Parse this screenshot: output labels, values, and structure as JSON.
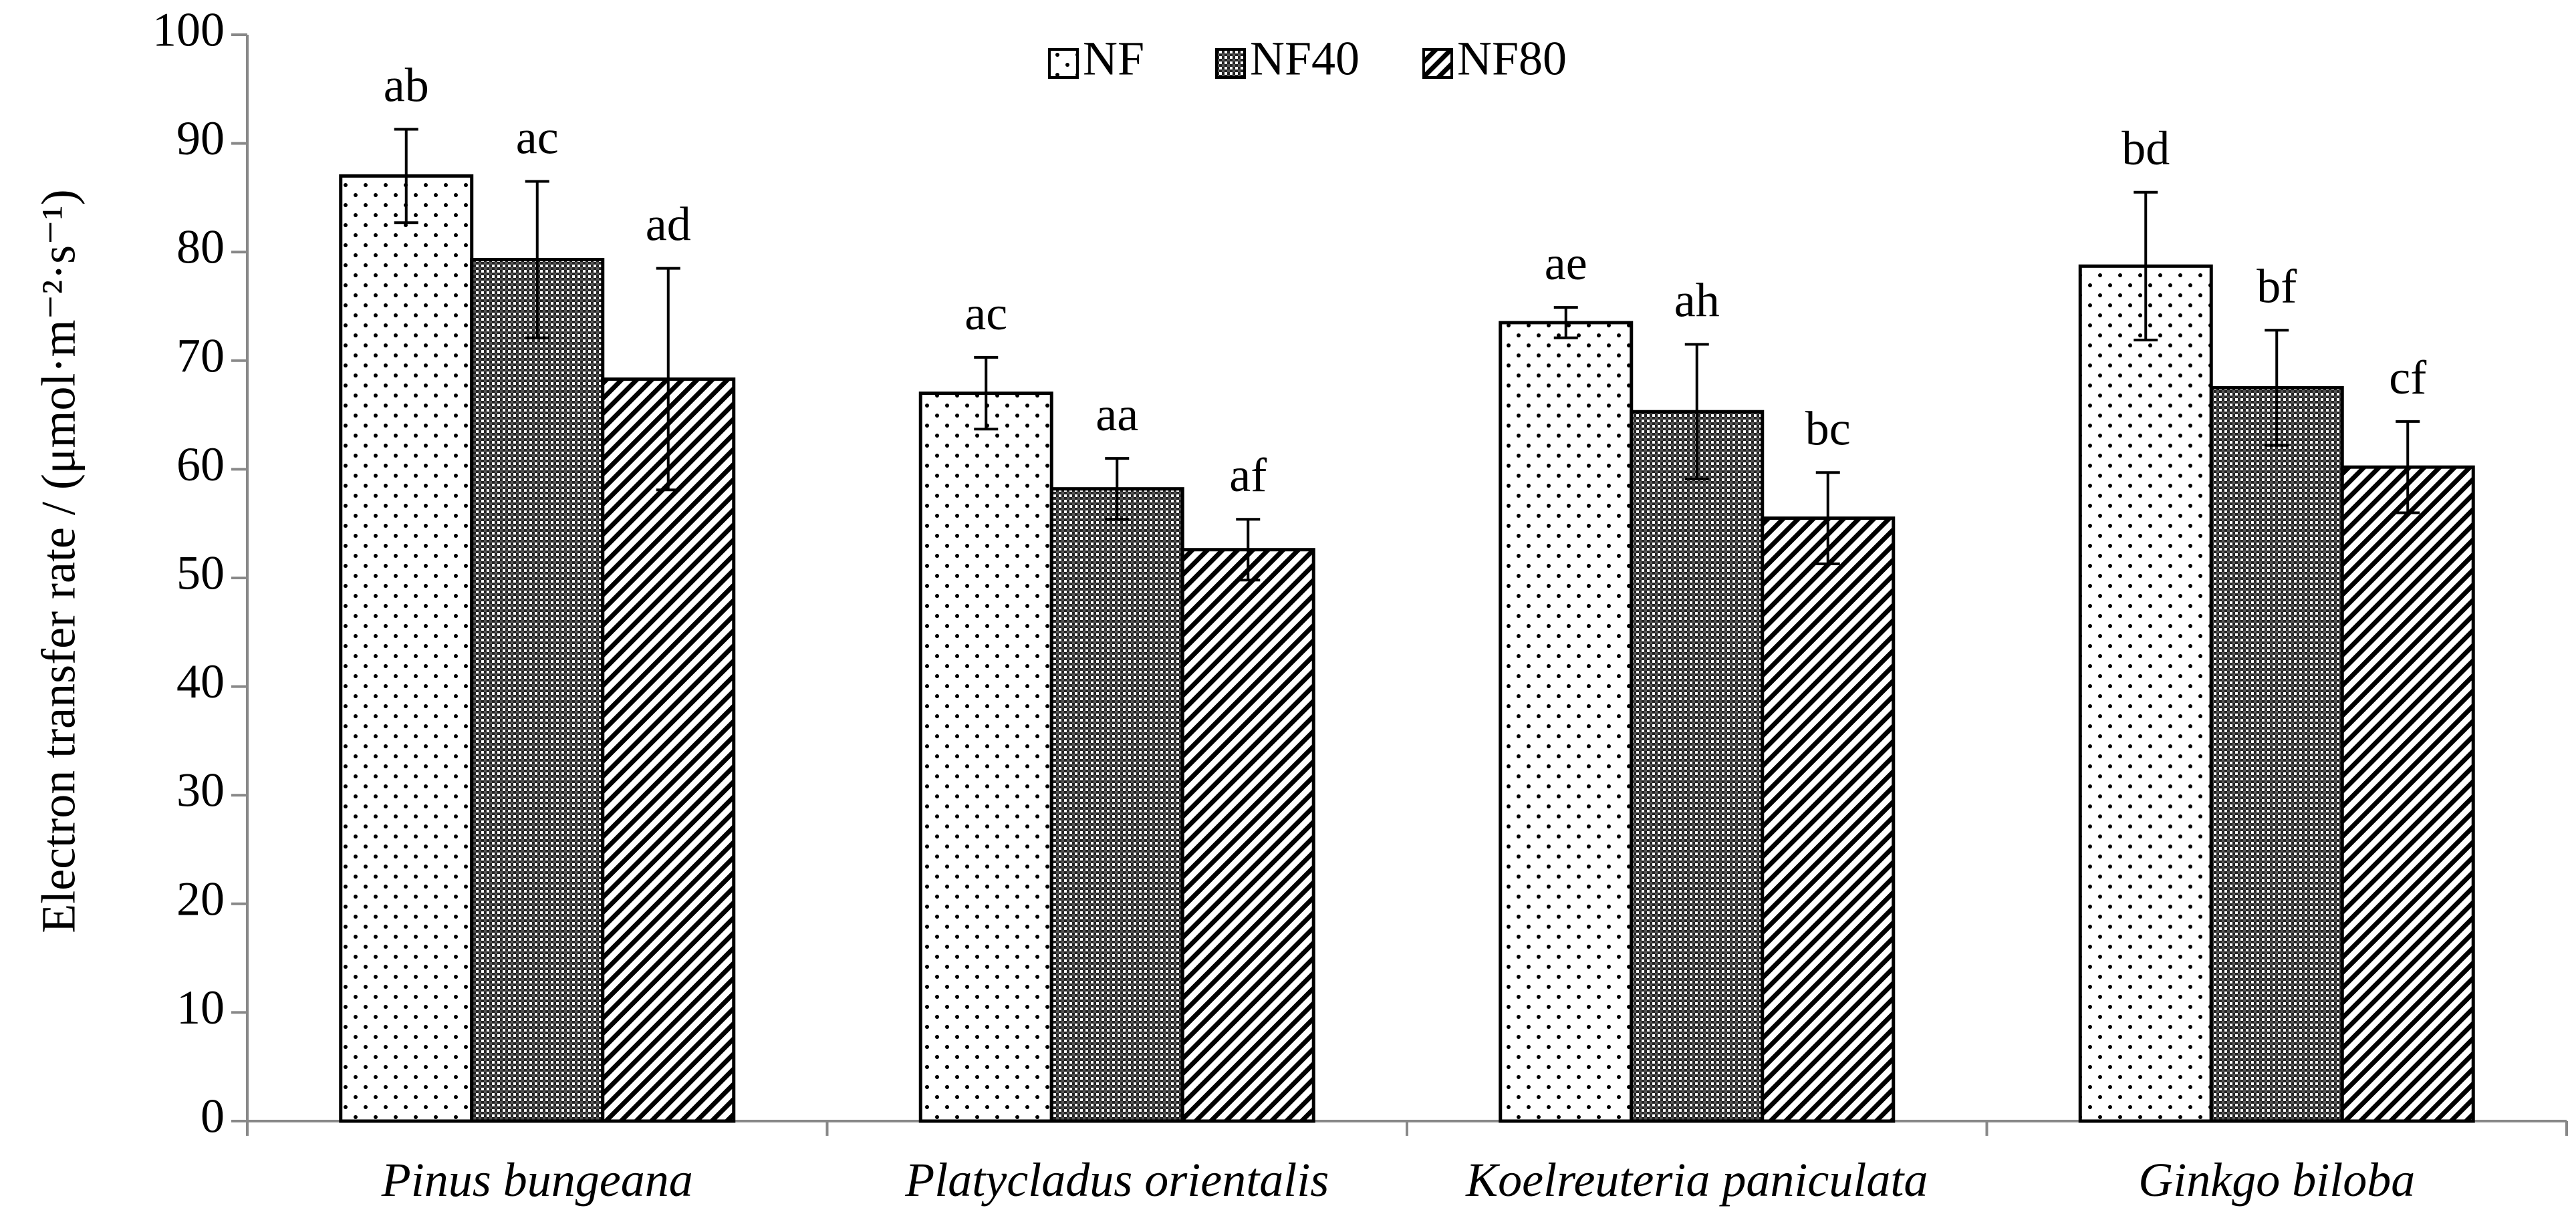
{
  "chart_data": {
    "type": "bar",
    "title": "",
    "xlabel": "",
    "ylabel": "Electron transfer rate / (μmol·m⁻²·s⁻¹)",
    "ylim": [
      0,
      100
    ],
    "yticks": [
      0,
      10,
      20,
      30,
      40,
      50,
      60,
      70,
      80,
      90,
      100
    ],
    "grid": false,
    "legend_position": "top-center",
    "categories": [
      "Pinus bungeana",
      "Platycladus orientalis",
      "Koelreuteria paniculata",
      "Ginkgo biloba"
    ],
    "series": [
      {
        "name": "NF",
        "pattern": "dots",
        "values": [
          87,
          67,
          73.5,
          78.7
        ],
        "errors": [
          4.3,
          3.3,
          1.4,
          6.8
        ],
        "labels": [
          "ab",
          "ac",
          "ae",
          "bd"
        ]
      },
      {
        "name": "NF40",
        "pattern": "checker",
        "values": [
          79.3,
          58.2,
          65.3,
          67.5
        ],
        "errors": [
          7.2,
          2.8,
          6.2,
          5.3
        ],
        "labels": [
          "ac",
          "aa",
          "ah",
          "bf"
        ]
      },
      {
        "name": "NF80",
        "pattern": "diagonal",
        "values": [
          68.3,
          52.6,
          55.5,
          60.2
        ],
        "errors": [
          10.2,
          2.8,
          4.2,
          4.2
        ],
        "labels": [
          "ad",
          "af",
          "bc",
          "cf"
        ]
      }
    ]
  }
}
